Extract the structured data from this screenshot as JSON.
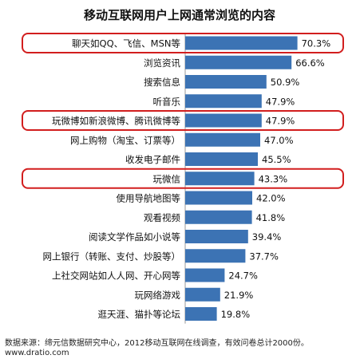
{
  "chart_data": {
    "type": "bar",
    "orientation": "horizontal",
    "title": "移动互联网用户上网通常浏览的内容",
    "categories": [
      "聊天如QQ、飞信、MSN等",
      "浏览资讯",
      "搜索信息",
      "听音乐",
      "玩微博如新浪微博、腾讯微博等",
      "网上购物（淘宝、订票等）",
      "收发电子邮件",
      "玩微信",
      "使用导航地图等",
      "观看视频",
      "阅读文学作品如小说等",
      "网上银行（转账、支付、炒股等）",
      "上社交网站如人人网、开心网等",
      "玩网络游戏",
      "逛天涯、猫扑等论坛"
    ],
    "values": [
      70.3,
      66.6,
      50.9,
      47.9,
      47.9,
      47.0,
      45.5,
      43.3,
      42.0,
      41.8,
      39.4,
      37.7,
      24.7,
      21.9,
      19.8
    ],
    "value_labels": [
      "70.3%",
      "66.6%",
      "50.9%",
      "47.9%",
      "47.9%",
      "47.0%",
      "45.5%",
      "43.3%",
      "42.0%",
      "41.8%",
      "39.4%",
      "37.7%",
      "24.7%",
      "21.9%",
      "19.8%"
    ],
    "highlighted": [
      "聊天如QQ、飞信、MSN等",
      "玩微博如新浪微博、腾讯微博等",
      "玩微信"
    ],
    "xlim": [
      0,
      100
    ],
    "grid": false,
    "legend": "none"
  },
  "colors": {
    "bar": "#3c73b4",
    "highlight_outline": "#d21e1e",
    "text": "#111111"
  },
  "footer": {
    "source": "数据来源：缔元信数据研究中心，2012移动互联网在线调查，有效问卷总计2000份。",
    "site": "www.dratio.com"
  }
}
